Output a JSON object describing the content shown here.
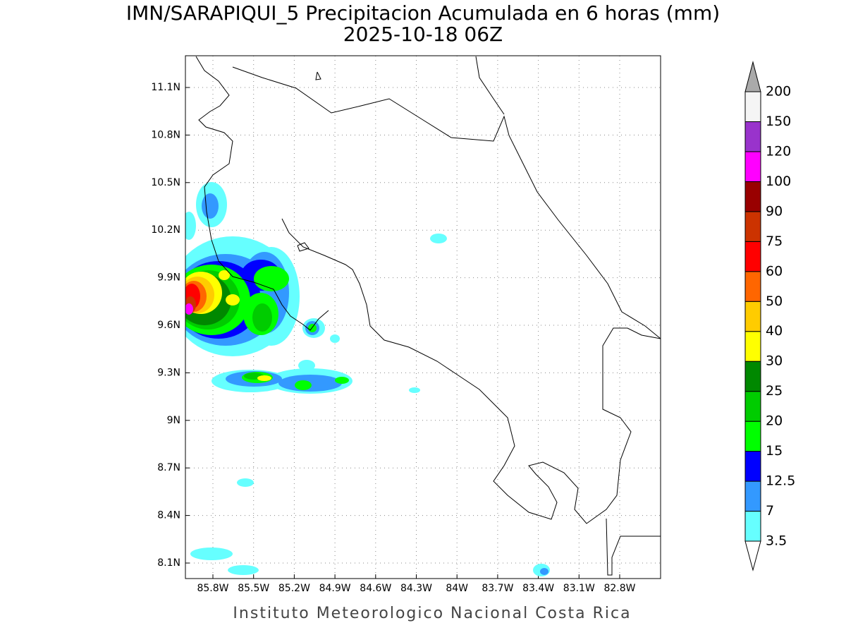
{
  "title": "IMN/SARAPIQUI_5 Precipitacion Acumulada en 6 horas (mm)",
  "subtitle": "2025-10-18 06Z",
  "footer": "Instituto Meteorologico Nacional Costa Rica",
  "map": {
    "lat_labels": [
      "11.1N",
      "10.8N",
      "10.5N",
      "10.2N",
      "9.9N",
      "9.6N",
      "9.3N",
      "9N",
      "8.7N",
      "8.4N",
      "8.1N"
    ],
    "lon_labels": [
      "85.8W",
      "85.5W",
      "85.2W",
      "84.9W",
      "84.6W",
      "84.3W",
      "84W",
      "83.7W",
      "83.4W",
      "83.1W",
      "82.8W"
    ]
  },
  "colorbar": {
    "levels": [
      3.5,
      7,
      12.5,
      15,
      20,
      25,
      30,
      40,
      50,
      60,
      75,
      90,
      100,
      120,
      150,
      200
    ],
    "colors": [
      "#ffffff",
      "#66ffff",
      "#3399ff",
      "#0000ff",
      "#00ff00",
      "#00cc00",
      "#008800",
      "#ffff00",
      "#ffcc00",
      "#ff6600",
      "#ff0000",
      "#cc3300",
      "#990000",
      "#ff00ff",
      "#9933cc",
      "#f5f5f5",
      "#aaaaaa"
    ]
  }
}
